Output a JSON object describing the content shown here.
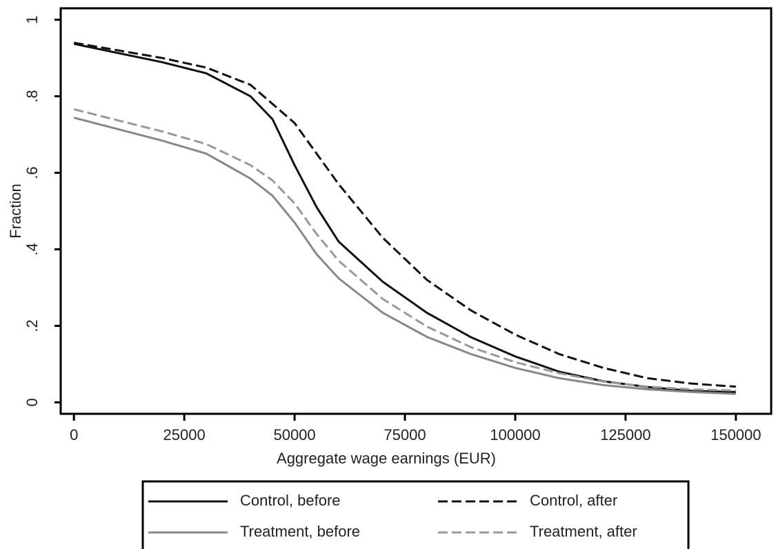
{
  "chart_data": {
    "type": "line",
    "x_label": "Aggregate wage earnings (EUR)",
    "y_label": "Fraction",
    "x": [
      0,
      10000,
      20000,
      30000,
      40000,
      45000,
      50000,
      55000,
      60000,
      70000,
      80000,
      90000,
      100000,
      110000,
      120000,
      130000,
      140000,
      150000
    ],
    "series": [
      {
        "name": "Control, before",
        "color": "#111111",
        "style": "solid",
        "values": [
          0.937,
          0.913,
          0.889,
          0.86,
          0.8,
          0.74,
          0.62,
          0.51,
          0.42,
          0.315,
          0.234,
          0.17,
          0.12,
          0.08,
          0.055,
          0.04,
          0.03,
          0.027
        ]
      },
      {
        "name": "Control, after",
        "color": "#111111",
        "style": "dashed",
        "values": [
          0.94,
          0.92,
          0.9,
          0.875,
          0.83,
          0.78,
          0.73,
          0.65,
          0.57,
          0.43,
          0.32,
          0.24,
          0.177,
          0.126,
          0.09,
          0.063,
          0.049,
          0.041
        ]
      },
      {
        "name": "Treatment, before",
        "color": "#888888",
        "style": "solid",
        "values": [
          0.744,
          0.714,
          0.684,
          0.65,
          0.585,
          0.54,
          0.47,
          0.387,
          0.324,
          0.234,
          0.171,
          0.126,
          0.09,
          0.063,
          0.045,
          0.034,
          0.027,
          0.022
        ]
      },
      {
        "name": "Treatment, after",
        "color": "#999999",
        "style": "dashed",
        "values": [
          0.766,
          0.737,
          0.708,
          0.675,
          0.62,
          0.58,
          0.52,
          0.44,
          0.37,
          0.27,
          0.198,
          0.144,
          0.105,
          0.076,
          0.054,
          0.041,
          0.034,
          0.031
        ]
      }
    ],
    "xlim": [
      -3000,
      158000
    ],
    "xticks": [
      0,
      25000,
      50000,
      75000,
      100000,
      125000,
      150000
    ],
    "ylim": [
      -0.03,
      1.03
    ],
    "yticks": [
      0,
      {
        "value": 0.2,
        "label": ".2"
      },
      {
        "value": 0.4,
        "label": ".4"
      },
      {
        "value": 0.6,
        "label": ".6"
      },
      {
        "value": 0.8,
        "label": ".8"
      },
      1
    ],
    "grid": false,
    "legend": "bottom",
    "legend_columns": 2
  }
}
